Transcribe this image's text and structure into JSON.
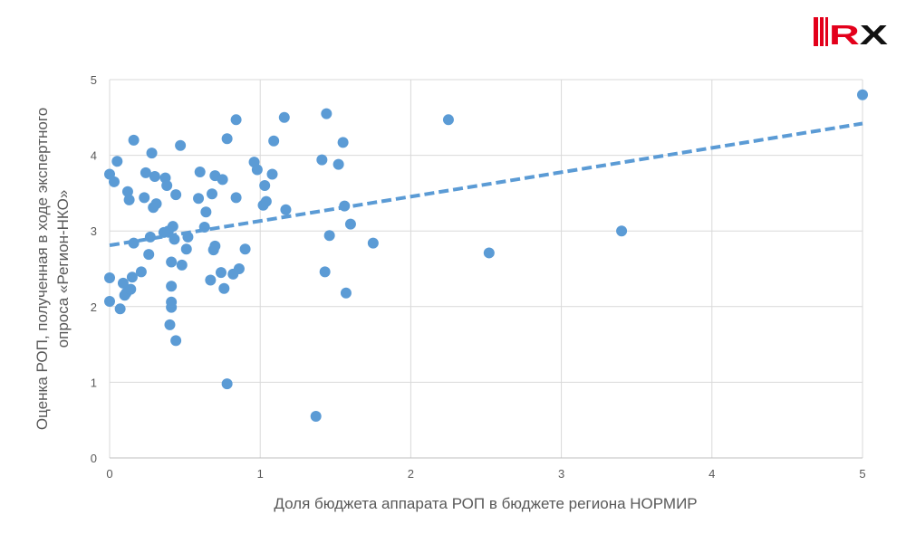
{
  "logo": {
    "text": "RX",
    "colors": {
      "red": "#e3001b",
      "black": "#111111"
    }
  },
  "chart_data": {
    "type": "scatter",
    "xlabel": "Доля бюджета аппарата РОП в бюджете региона НОРМИР",
    "ylabel_lines": [
      "Оценка РОП, полученная в ходе экспертного",
      "опроса «Регион-НКО»"
    ],
    "xlim": [
      0,
      5
    ],
    "ylim": [
      0,
      5
    ],
    "x_ticks": [
      "0",
      "1",
      "2",
      "3",
      "4",
      "5"
    ],
    "y_ticks": [
      "0",
      "1",
      "2",
      "3",
      "4",
      "5"
    ],
    "grid": true,
    "marker_color": "#5b9bd5",
    "trendline": {
      "type": "linear",
      "style": "dashed",
      "color": "#5b9bd5",
      "points": [
        [
          0,
          2.81
        ],
        [
          5,
          4.42
        ]
      ]
    },
    "points": [
      [
        0.0,
        3.75
      ],
      [
        0.03,
        3.65
      ],
      [
        0.05,
        3.92
      ],
      [
        0.0,
        2.38
      ],
      [
        0.0,
        2.07
      ],
      [
        0.07,
        1.97
      ],
      [
        0.09,
        2.31
      ],
      [
        0.1,
        2.15
      ],
      [
        0.11,
        2.18
      ],
      [
        0.12,
        3.52
      ],
      [
        0.13,
        3.41
      ],
      [
        0.14,
        2.23
      ],
      [
        0.15,
        2.39
      ],
      [
        0.16,
        4.2
      ],
      [
        0.16,
        2.84
      ],
      [
        0.21,
        2.46
      ],
      [
        0.23,
        3.44
      ],
      [
        0.24,
        3.77
      ],
      [
        0.26,
        2.69
      ],
      [
        0.27,
        2.92
      ],
      [
        0.28,
        4.03
      ],
      [
        0.29,
        3.31
      ],
      [
        0.3,
        3.72
      ],
      [
        0.31,
        3.36
      ],
      [
        0.36,
        2.98
      ],
      [
        0.37,
        3.7
      ],
      [
        0.38,
        3.6
      ],
      [
        0.39,
        3.0
      ],
      [
        0.4,
        1.76
      ],
      [
        0.41,
        2.27
      ],
      [
        0.41,
        1.99
      ],
      [
        0.41,
        2.06
      ],
      [
        0.41,
        2.59
      ],
      [
        0.42,
        3.06
      ],
      [
        0.43,
        2.89
      ],
      [
        0.44,
        1.55
      ],
      [
        0.44,
        3.48
      ],
      [
        0.47,
        4.13
      ],
      [
        0.48,
        2.55
      ],
      [
        0.51,
        2.76
      ],
      [
        0.52,
        2.92
      ],
      [
        0.59,
        3.43
      ],
      [
        0.6,
        3.78
      ],
      [
        0.63,
        3.05
      ],
      [
        0.64,
        3.25
      ],
      [
        0.67,
        2.35
      ],
      [
        0.68,
        3.49
      ],
      [
        0.69,
        2.75
      ],
      [
        0.7,
        2.8
      ],
      [
        0.7,
        3.73
      ],
      [
        0.74,
        2.45
      ],
      [
        0.75,
        3.68
      ],
      [
        0.76,
        2.24
      ],
      [
        0.78,
        4.22
      ],
      [
        0.78,
        0.98
      ],
      [
        0.82,
        2.43
      ],
      [
        0.84,
        4.47
      ],
      [
        0.84,
        3.44
      ],
      [
        0.86,
        2.5
      ],
      [
        0.9,
        2.76
      ],
      [
        0.96,
        3.91
      ],
      [
        0.98,
        3.81
      ],
      [
        1.02,
        3.34
      ],
      [
        1.03,
        3.6
      ],
      [
        1.04,
        3.39
      ],
      [
        1.08,
        3.75
      ],
      [
        1.09,
        4.19
      ],
      [
        1.16,
        4.5
      ],
      [
        1.17,
        3.28
      ],
      [
        1.37,
        0.55
      ],
      [
        1.41,
        3.94
      ],
      [
        1.43,
        2.46
      ],
      [
        1.44,
        4.55
      ],
      [
        1.46,
        2.94
      ],
      [
        1.52,
        3.88
      ],
      [
        1.55,
        4.17
      ],
      [
        1.56,
        3.33
      ],
      [
        1.57,
        2.18
      ],
      [
        1.6,
        3.09
      ],
      [
        1.75,
        2.84
      ],
      [
        2.25,
        4.47
      ],
      [
        2.52,
        2.71
      ],
      [
        3.4,
        3.0
      ],
      [
        5.0,
        4.8
      ]
    ]
  }
}
